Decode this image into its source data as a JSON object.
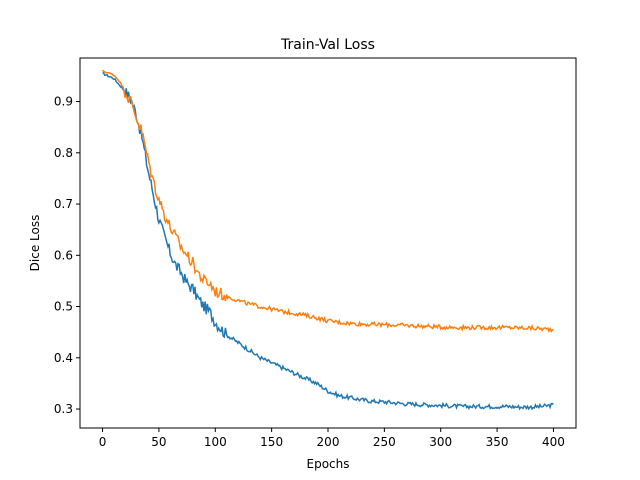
{
  "chart_data": {
    "type": "line",
    "title": "Train-Val Loss",
    "xlabel": "Epochs",
    "ylabel": "Dice Loss",
    "xlim": [
      -20,
      420
    ],
    "ylim": [
      0.263,
      0.985
    ],
    "xticks": [
      0,
      50,
      100,
      150,
      200,
      250,
      300,
      350,
      400
    ],
    "yticks": [
      0.3,
      0.4,
      0.5,
      0.6,
      0.7,
      0.8,
      0.9
    ],
    "grid": false,
    "legend": "none",
    "series": [
      {
        "color": "#1f77b4",
        "points": [
          [
            0,
            0.955
          ],
          [
            10,
            0.945
          ],
          [
            20,
            0.92
          ],
          [
            25,
            0.905
          ],
          [
            30,
            0.875
          ],
          [
            35,
            0.83
          ],
          [
            40,
            0.77
          ],
          [
            45,
            0.72
          ],
          [
            50,
            0.67
          ],
          [
            55,
            0.635
          ],
          [
            60,
            0.605
          ],
          [
            65,
            0.58
          ],
          [
            70,
            0.565
          ],
          [
            75,
            0.545
          ],
          [
            80,
            0.535
          ],
          [
            85,
            0.515
          ],
          [
            90,
            0.5
          ],
          [
            95,
            0.49
          ],
          [
            100,
            0.47
          ],
          [
            110,
            0.445
          ],
          [
            120,
            0.43
          ],
          [
            130,
            0.415
          ],
          [
            140,
            0.4
          ],
          [
            150,
            0.39
          ],
          [
            160,
            0.38
          ],
          [
            170,
            0.37
          ],
          [
            180,
            0.36
          ],
          [
            190,
            0.35
          ],
          [
            200,
            0.335
          ],
          [
            210,
            0.326
          ],
          [
            220,
            0.322
          ],
          [
            230,
            0.318
          ],
          [
            240,
            0.315
          ],
          [
            250,
            0.314
          ],
          [
            260,
            0.312
          ],
          [
            270,
            0.31
          ],
          [
            280,
            0.309
          ],
          [
            290,
            0.308
          ],
          [
            300,
            0.307
          ],
          [
            310,
            0.306
          ],
          [
            320,
            0.305
          ],
          [
            330,
            0.305
          ],
          [
            340,
            0.305
          ],
          [
            350,
            0.305
          ],
          [
            360,
            0.305
          ],
          [
            370,
            0.304
          ],
          [
            380,
            0.304
          ],
          [
            390,
            0.305
          ],
          [
            400,
            0.308
          ]
        ]
      },
      {
        "color": "#ff7f0e",
        "points": [
          [
            0,
            0.96
          ],
          [
            10,
            0.952
          ],
          [
            15,
            0.94
          ],
          [
            20,
            0.92
          ],
          [
            25,
            0.9
          ],
          [
            30,
            0.87
          ],
          [
            35,
            0.84
          ],
          [
            40,
            0.79
          ],
          [
            45,
            0.745
          ],
          [
            50,
            0.71
          ],
          [
            55,
            0.68
          ],
          [
            60,
            0.655
          ],
          [
            65,
            0.635
          ],
          [
            70,
            0.615
          ],
          [
            75,
            0.6
          ],
          [
            80,
            0.585
          ],
          [
            85,
            0.565
          ],
          [
            90,
            0.55
          ],
          [
            95,
            0.545
          ],
          [
            100,
            0.53
          ],
          [
            110,
            0.52
          ],
          [
            120,
            0.512
          ],
          [
            130,
            0.505
          ],
          [
            140,
            0.5
          ],
          [
            150,
            0.495
          ],
          [
            160,
            0.49
          ],
          [
            170,
            0.487
          ],
          [
            180,
            0.483
          ],
          [
            190,
            0.478
          ],
          [
            200,
            0.472
          ],
          [
            220,
            0.467
          ],
          [
            240,
            0.465
          ],
          [
            260,
            0.464
          ],
          [
            280,
            0.462
          ],
          [
            300,
            0.46
          ],
          [
            320,
            0.459
          ],
          [
            340,
            0.459
          ],
          [
            360,
            0.459
          ],
          [
            380,
            0.458
          ],
          [
            400,
            0.455
          ]
        ]
      }
    ]
  }
}
